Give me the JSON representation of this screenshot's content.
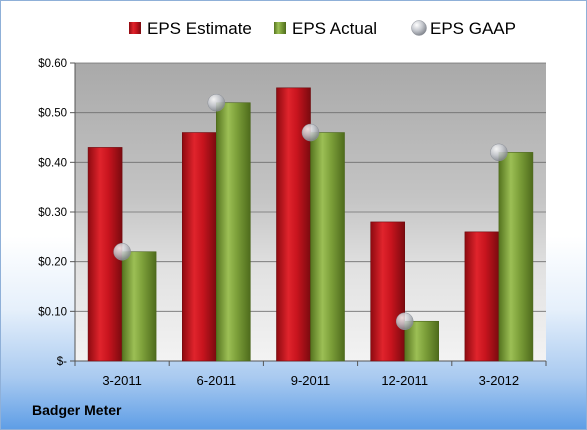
{
  "chart_data": {
    "type": "bar",
    "categories": [
      "3-2011",
      "6-2011",
      "9-2011",
      "12-2011",
      "3-2012"
    ],
    "series": [
      {
        "name": "EPS Estimate",
        "kind": "bar",
        "values": [
          0.43,
          0.46,
          0.55,
          0.28,
          0.26
        ],
        "color": "#c8141e"
      },
      {
        "name": "EPS Actual",
        "kind": "bar",
        "values": [
          0.22,
          0.52,
          0.46,
          0.08,
          0.42
        ],
        "color": "#7da03a"
      },
      {
        "name": "EPS GAAP",
        "kind": "marker",
        "values": [
          0.22,
          0.52,
          0.46,
          0.08,
          0.42
        ],
        "color": "#b8bcc4"
      }
    ],
    "ylim": [
      0,
      0.6
    ],
    "yticks": [
      0,
      0.1,
      0.2,
      0.3,
      0.4,
      0.5,
      0.6
    ],
    "ytick_labels": [
      "$-",
      "$0.10",
      "$0.20",
      "$0.30",
      "$0.40",
      "$0.50",
      "$0.60"
    ],
    "grid": true,
    "legend_position": "top",
    "plot_background": "gradient gray"
  },
  "footer": {
    "company": "Badger Meter"
  }
}
